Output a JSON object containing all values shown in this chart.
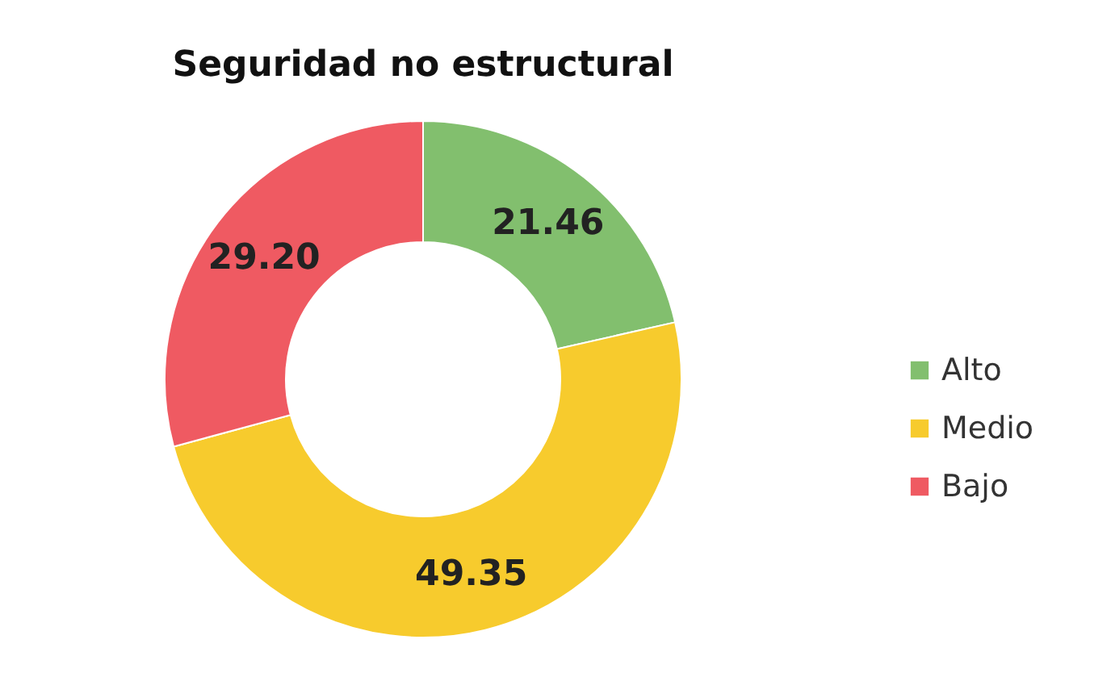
{
  "chart_data": {
    "type": "donut",
    "title": "Seguridad no estructural",
    "categories": [
      "Alto",
      "Medio",
      "Bajo"
    ],
    "values": [
      21.46,
      49.35,
      29.2
    ],
    "value_labels": [
      "21.46",
      "49.35",
      "29.20"
    ],
    "colors": [
      "#82bf6e",
      "#f7cb2d",
      "#ef5a62"
    ],
    "legend": "right"
  }
}
